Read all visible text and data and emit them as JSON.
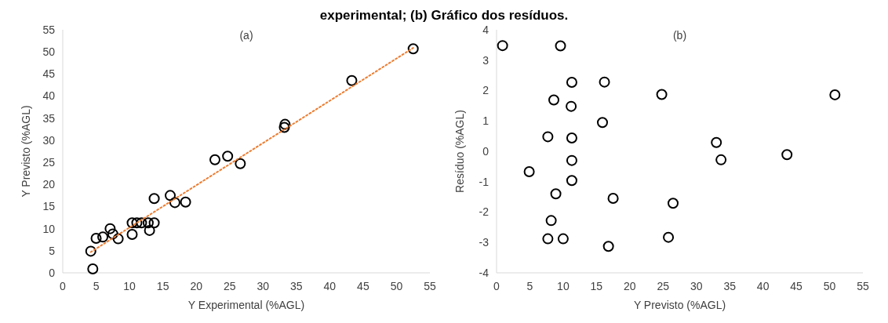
{
  "chart_data": [
    {
      "type": "scatter",
      "title": "experimental; (b) Gráfico dos resíduos.",
      "xlabel": "Y Experimental (%AGL)",
      "ylabel": "Y Previsto (%AGL)",
      "annotations": [
        "(a)"
      ],
      "xlim": [
        0,
        55
      ],
      "xticks": [
        0,
        5,
        10,
        15,
        20,
        25,
        30,
        35,
        40,
        45,
        50,
        55
      ],
      "ylim": [
        0,
        55
      ],
      "yticks": [
        0,
        5,
        10,
        15,
        20,
        25,
        30,
        35,
        40,
        45,
        50,
        55
      ],
      "grid": false,
      "marker": "circle",
      "series": [
        {
          "color": "#000000",
          "x": [
            4.2,
            4.5,
            5.0,
            6.0,
            7.1,
            7.5,
            8.3,
            10.4,
            10.4,
            11.1,
            11.8,
            12.8,
            13.7,
            13.0,
            13.7,
            16.1,
            16.8,
            18.4,
            22.8,
            24.7,
            26.6,
            33.2,
            33.3,
            43.3,
            52.5
          ],
          "values": [
            4.9,
            0.9,
            7.8,
            8.1,
            10.0,
            8.8,
            7.7,
            8.7,
            11.3,
            11.3,
            11.3,
            11.3,
            11.3,
            9.6,
            16.8,
            17.5,
            15.9,
            16.0,
            25.6,
            26.4,
            24.7,
            32.9,
            33.6,
            43.5,
            50.7
          ]
        },
        {
          "type": "line",
          "color": "#ed7d31",
          "line_style": "dotted",
          "marker": "none",
          "x": [
            4.2,
            52.5
          ],
          "values": [
            4.7,
            50.9
          ]
        }
      ]
    },
    {
      "type": "scatter",
      "xlabel": "Y Previsto (%AGL)",
      "ylabel": "Resíduo (%AGL)",
      "annotations": [
        "(b)"
      ],
      "xlim": [
        0,
        55
      ],
      "xticks": [
        0,
        5,
        10,
        15,
        20,
        25,
        30,
        35,
        40,
        45,
        50,
        55
      ],
      "ylim": [
        -4,
        4
      ],
      "yticks": [
        -4,
        -3,
        -2,
        -1,
        0,
        1,
        2,
        3,
        4
      ],
      "grid": false,
      "marker": "circle",
      "series": [
        {
          "color": "#000000",
          "x": [
            0.9,
            9.6,
            11.3,
            16.2,
            24.8,
            50.8,
            8.6,
            11.2,
            15.9,
            7.7,
            11.3,
            33.0,
            11.3,
            33.7,
            43.6,
            4.9,
            11.3,
            8.9,
            17.5,
            26.5,
            8.2,
            7.7,
            10.0,
            25.8,
            16.8
          ],
          "values": [
            3.48,
            3.47,
            2.27,
            2.28,
            1.87,
            1.86,
            1.69,
            1.48,
            0.95,
            0.48,
            0.44,
            0.29,
            -0.3,
            -0.28,
            -0.11,
            -0.67,
            -0.96,
            -1.4,
            -1.55,
            -1.71,
            -2.28,
            -2.88,
            -2.88,
            -2.83,
            -3.13
          ]
        }
      ]
    }
  ]
}
